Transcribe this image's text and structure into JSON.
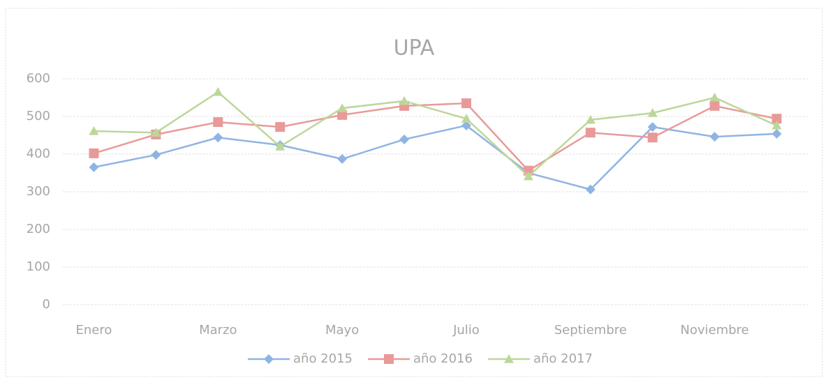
{
  "chart_data": {
    "type": "line",
    "title": "UPA",
    "categories": [
      "Enero",
      null,
      "Marzo",
      null,
      "Mayo",
      null,
      "Julio",
      null,
      "Septiembre",
      null,
      "Noviembre",
      null
    ],
    "series": [
      {
        "name": "año 2015",
        "color": "#8fb4e3",
        "marker": "diamond",
        "values": [
          365,
          398,
          444,
          424,
          387,
          439,
          476,
          350,
          306,
          472,
          446,
          454
        ]
      },
      {
        "name": "año 2016",
        "color": "#e89a98",
        "marker": "square",
        "values": [
          402,
          452,
          485,
          472,
          504,
          528,
          535,
          356,
          457,
          444,
          528,
          494
        ]
      },
      {
        "name": "año 2017",
        "color": "#bcd79a",
        "marker": "triangle",
        "values": [
          461,
          457,
          565,
          420,
          522,
          541,
          494,
          341,
          491,
          509,
          550,
          476
        ]
      }
    ],
    "ylim": [
      0,
      600
    ],
    "yticks": [
      0,
      100,
      200,
      300,
      400,
      500,
      600
    ],
    "grid": true,
    "legend": "bottom"
  }
}
